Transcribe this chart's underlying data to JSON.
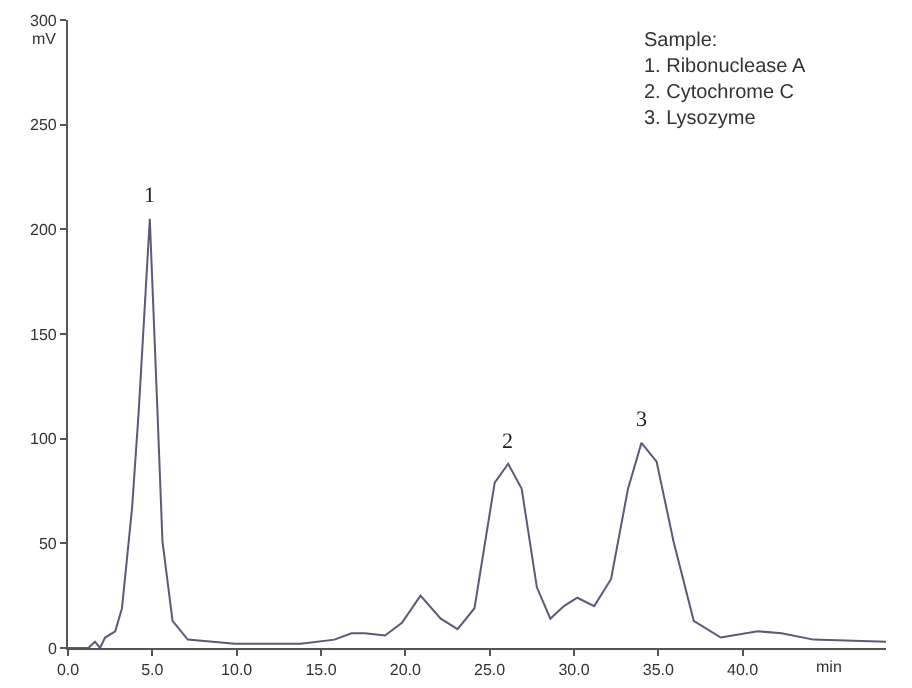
{
  "chart_data": {
    "type": "line",
    "xlabel": "min",
    "ylabel": "mV",
    "x": [
      0,
      1.2,
      1.6,
      1.9,
      2.2,
      2.8,
      3.2,
      3.8,
      4.2,
      4.85,
      5.3,
      5.6,
      6.2,
      7.1,
      9.9,
      13.8,
      15.8,
      16.8,
      17.6,
      18.8,
      19.8,
      20.9,
      22.1,
      23.1,
      24.1,
      25.3,
      26.1,
      26.9,
      27.8,
      28.6,
      29.4,
      30.2,
      31.2,
      32.2,
      33.2,
      34.0,
      34.9,
      35.9,
      37.1,
      38.7,
      40.9,
      42.3,
      44.2,
      48.5
    ],
    "series": [
      {
        "color": "#5a5a7a",
        "values": [
          0,
          0,
          3,
          0,
          5,
          8,
          19,
          67,
          114,
          205,
          114,
          51,
          13,
          4,
          2,
          2,
          4,
          7,
          7,
          6,
          12,
          25,
          14,
          9,
          19,
          79,
          88,
          76,
          29,
          14,
          20,
          24,
          20,
          33,
          76,
          98,
          89,
          51,
          13,
          5,
          8,
          7,
          4,
          3
        ]
      }
    ],
    "xlim": [
      0,
      48.5
    ],
    "ylim": [
      0,
      300
    ],
    "xticks": [
      {
        "value": 0,
        "label": "0.0"
      },
      {
        "value": 5,
        "label": "5.0"
      },
      {
        "value": 10,
        "label": "10.0"
      },
      {
        "value": 15,
        "label": "15.0"
      },
      {
        "value": 20,
        "label": "20.0"
      },
      {
        "value": 25,
        "label": "25.0"
      },
      {
        "value": 30,
        "label": "30.0"
      },
      {
        "value": 35,
        "label": "35.0"
      },
      {
        "value": 40,
        "label": "40.0"
      }
    ],
    "yticks": [
      0,
      50,
      100,
      150,
      200,
      250,
      300
    ],
    "grid": false,
    "marker": "none",
    "line_style": "solid",
    "annotations": [
      {
        "text": "1",
        "x": 4.85,
        "y": 205
      },
      {
        "text": "2",
        "x": 26.1,
        "y": 88
      },
      {
        "text": "3",
        "x": 34.0,
        "y": 98
      },
      "Sample:\n1. Ribonuclease A\n2. Cytochrome C\n3. Lysozyme"
    ]
  }
}
